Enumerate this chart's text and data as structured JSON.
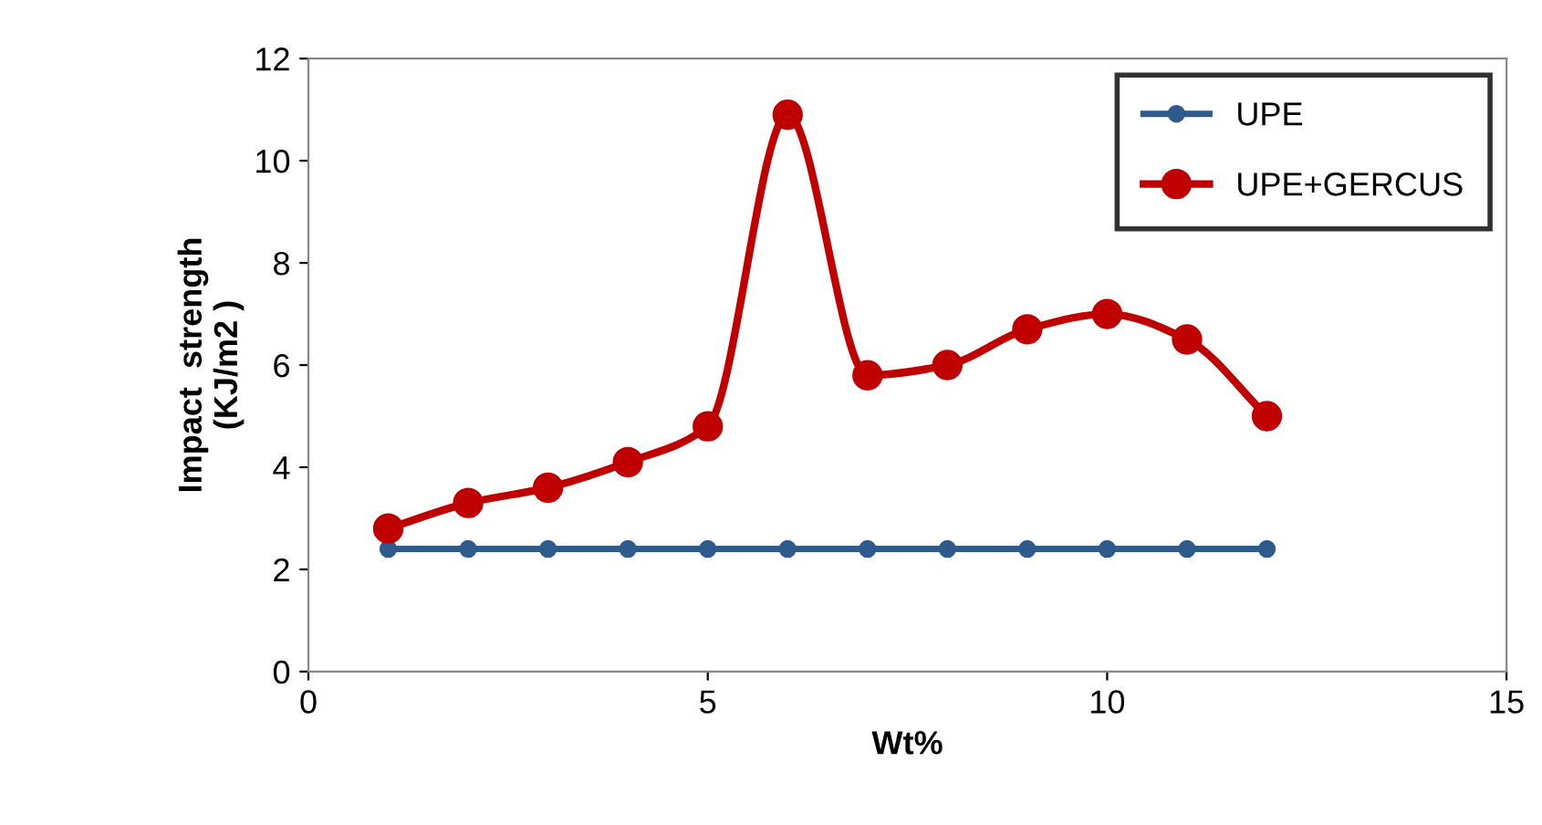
{
  "chart_data": {
    "type": "line",
    "xlabel": "Wt%",
    "ylabel": "Impact  strength\n(KJ/m2 )",
    "xlim": [
      0,
      15
    ],
    "xticks": [
      0,
      5,
      10,
      15
    ],
    "ylim": [
      0,
      12
    ],
    "yticks": [
      0,
      2,
      4,
      6,
      8,
      10,
      12
    ],
    "grid": false,
    "legend": "top right",
    "marker": "circle",
    "line_style": "solid",
    "series": [
      {
        "name": "UPE",
        "color": "#2e5a8c",
        "x": [
          1,
          2,
          3,
          4,
          5,
          6,
          7,
          8,
          9,
          10,
          11,
          12
        ],
        "values": [
          2.4,
          2.4,
          2.4,
          2.4,
          2.4,
          2.4,
          2.4,
          2.4,
          2.4,
          2.4,
          2.4,
          2.4
        ]
      },
      {
        "name": "UPE+GERCUS",
        "color": "#c00000",
        "x": [
          1,
          2,
          3,
          4,
          5,
          6,
          7,
          8,
          9,
          10,
          11,
          12
        ],
        "values": [
          2.8,
          3.3,
          3.6,
          4.1,
          4.8,
          10.9,
          5.8,
          6.0,
          6.7,
          7.0,
          6.5,
          5.0
        ]
      }
    ]
  }
}
